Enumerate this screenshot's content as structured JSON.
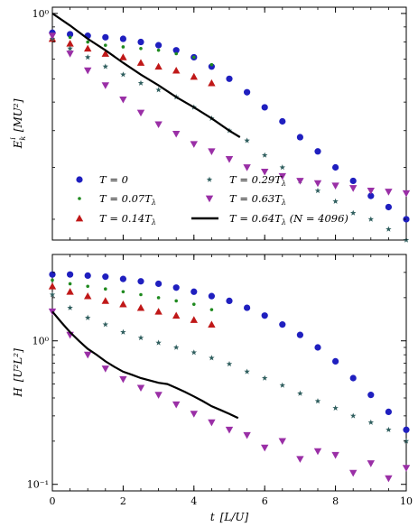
{
  "chart_data": [
    {
      "type": "scatter",
      "panel": "top",
      "ylabel": "$E_k^i$  $[MU^2]$",
      "ylabel_main": "E",
      "ylabel_sub": "k",
      "ylabel_sup": "i",
      "ylabel_unit": "[MU²]",
      "xlim": [
        0,
        10
      ],
      "ylog": true,
      "ylim": [
        0.17,
        1.05
      ],
      "yticks": [
        {
          "value": 1,
          "label": "10⁰"
        }
      ],
      "legend": "lower-left (inside, two columns)",
      "series": [
        {
          "name": "T = 0",
          "marker": "circle",
          "color": "#1f1fbf",
          "x": [
            0,
            0.5,
            1,
            1.5,
            2,
            2.5,
            3,
            3.5,
            4,
            4.5,
            5,
            5.5,
            6,
            6.5,
            7,
            7.5,
            8,
            8.5,
            9,
            9.5,
            10
          ],
          "y": [
            0.86,
            0.85,
            0.84,
            0.83,
            0.82,
            0.8,
            0.78,
            0.75,
            0.71,
            0.66,
            0.6,
            0.54,
            0.48,
            0.43,
            0.38,
            0.34,
            0.3,
            0.27,
            0.24,
            0.22,
            0.2
          ]
        },
        {
          "name": "T = 0.07T_λ",
          "marker": "dot",
          "color": "#1f8a1f",
          "x": [
            0,
            0.5,
            1,
            1.5,
            2,
            2.5,
            3,
            3.5,
            4,
            4.5
          ],
          "y": [
            0.85,
            0.83,
            0.8,
            0.78,
            0.77,
            0.76,
            0.75,
            0.73,
            0.71,
            0.67
          ]
        },
        {
          "name": "T = 0.14T_λ",
          "marker": "triangle-up",
          "color": "#c01818",
          "x": [
            0,
            0.5,
            1,
            1.5,
            2,
            2.5,
            3,
            3.5,
            4,
            4.5
          ],
          "y": [
            0.82,
            0.79,
            0.76,
            0.73,
            0.71,
            0.68,
            0.66,
            0.64,
            0.61,
            0.58
          ]
        },
        {
          "name": "T = 0.29T_λ",
          "marker": "star",
          "color": "#2f5e5e",
          "x": [
            0,
            0.5,
            1,
            1.5,
            2,
            2.5,
            3,
            3.5,
            4,
            4.5,
            5,
            5.5,
            6,
            6.5,
            7,
            7.5,
            8,
            8.5,
            9,
            9.5,
            10
          ],
          "y": [
            0.82,
            0.76,
            0.71,
            0.66,
            0.62,
            0.58,
            0.55,
            0.52,
            0.48,
            0.44,
            0.4,
            0.37,
            0.33,
            0.3,
            0.27,
            0.25,
            0.23,
            0.21,
            0.2,
            0.185,
            0.17
          ]
        },
        {
          "name": "T = 0.63T_λ",
          "marker": "triangle-down",
          "color": "#9a2fa6",
          "x": [
            0,
            0.5,
            1,
            1.5,
            2,
            2.5,
            3,
            3.5,
            4,
            4.5,
            5,
            5.5,
            6,
            6.5,
            7,
            7.5,
            8,
            8.5,
            9,
            9.5,
            10
          ],
          "y": [
            0.84,
            0.73,
            0.64,
            0.57,
            0.51,
            0.46,
            0.42,
            0.39,
            0.36,
            0.34,
            0.32,
            0.3,
            0.29,
            0.28,
            0.27,
            0.265,
            0.26,
            0.255,
            0.25,
            0.248,
            0.245
          ]
        },
        {
          "name": "T = 0.64T_λ (N = 4096)",
          "marker": "line",
          "color": "#000000",
          "x": [
            0,
            0.5,
            1,
            1.5,
            2,
            2.5,
            3,
            3.5,
            4,
            4.5,
            5,
            5.3
          ],
          "y": [
            1.0,
            0.91,
            0.82,
            0.75,
            0.68,
            0.62,
            0.57,
            0.52,
            0.48,
            0.44,
            0.4,
            0.38
          ]
        }
      ],
      "legend_entries": [
        {
          "text": "T = 0",
          "marker": "circle",
          "color": "#1f1fbf"
        },
        {
          "text": "T = 0.07T",
          "sub": "λ",
          "marker": "dot",
          "color": "#1f8a1f"
        },
        {
          "text": "T = 0.14T",
          "sub": "λ",
          "marker": "triangle-up",
          "color": "#c01818"
        },
        {
          "text": "T = 0.29T",
          "sub": "λ",
          "marker": "star",
          "color": "#2f5e5e"
        },
        {
          "text": "T = 0.63T",
          "sub": "λ",
          "marker": "triangle-down",
          "color": "#9a2fa6"
        },
        {
          "text": "T = 0.64T",
          "sub": "λ",
          "tail": " (N = 4096)",
          "marker": "line",
          "color": "#000000"
        }
      ]
    },
    {
      "type": "scatter",
      "panel": "bottom",
      "xlabel": "t  [L/U]",
      "xlabel_main": "t",
      "xlabel_unit": "[L/U]",
      "ylabel": "H  [U²L²]",
      "ylabel_main": "H",
      "ylabel_unit": "[U²L²]",
      "xlim": [
        0,
        10
      ],
      "xticks": [
        {
          "value": 0,
          "label": "0"
        },
        {
          "value": 2,
          "label": "2"
        },
        {
          "value": 4,
          "label": "4"
        },
        {
          "value": 6,
          "label": "6"
        },
        {
          "value": 8,
          "label": "8"
        },
        {
          "value": 10,
          "label": "10"
        }
      ],
      "ylog": true,
      "ylim": [
        0.09,
        4
      ],
      "yticks": [
        {
          "value": 1,
          "label": "10⁰"
        },
        {
          "value": 0.1,
          "label": "10⁻¹"
        }
      ],
      "series": [
        {
          "name": "T = 0",
          "marker": "circle",
          "color": "#1f1fbf",
          "x": [
            0,
            0.5,
            1,
            1.5,
            2,
            2.5,
            3,
            3.5,
            4,
            4.5,
            5,
            5.5,
            6,
            6.5,
            7,
            7.5,
            8,
            8.5,
            9,
            9.5,
            10
          ],
          "y": [
            2.9,
            2.9,
            2.85,
            2.8,
            2.7,
            2.6,
            2.5,
            2.35,
            2.2,
            2.05,
            1.9,
            1.7,
            1.5,
            1.3,
            1.1,
            0.9,
            0.72,
            0.55,
            0.42,
            0.32,
            0.24
          ]
        },
        {
          "name": "T = 0.07T_λ",
          "marker": "dot",
          "color": "#1f8a1f",
          "x": [
            0,
            0.5,
            1,
            1.5,
            2,
            2.5,
            3,
            3.5,
            4,
            4.5
          ],
          "y": [
            2.65,
            2.5,
            2.4,
            2.3,
            2.2,
            2.1,
            2.0,
            1.9,
            1.8,
            1.65
          ]
        },
        {
          "name": "T = 0.14T_λ",
          "marker": "triangle-up",
          "color": "#c01818",
          "x": [
            0,
            0.5,
            1,
            1.5,
            2,
            2.5,
            3,
            3.5,
            4,
            4.5
          ],
          "y": [
            2.4,
            2.2,
            2.05,
            1.9,
            1.8,
            1.7,
            1.6,
            1.5,
            1.4,
            1.3
          ]
        },
        {
          "name": "T = 0.29T_λ",
          "marker": "star",
          "color": "#2f5e5e",
          "x": [
            0,
            0.5,
            1,
            1.5,
            2,
            2.5,
            3,
            3.5,
            4,
            4.5,
            5,
            5.5,
            6,
            6.5,
            7,
            7.5,
            8,
            8.5,
            9,
            9.5,
            10
          ],
          "y": [
            2.1,
            1.7,
            1.45,
            1.3,
            1.15,
            1.05,
            0.97,
            0.9,
            0.83,
            0.76,
            0.69,
            0.61,
            0.55,
            0.49,
            0.43,
            0.38,
            0.34,
            0.3,
            0.27,
            0.24,
            0.2
          ]
        },
        {
          "name": "T = 0.63T_λ",
          "marker": "triangle-down",
          "color": "#9a2fa6",
          "x": [
            0,
            0.5,
            1,
            1.5,
            2,
            2.5,
            3,
            3.5,
            4,
            4.5,
            5,
            5.5,
            6,
            6.5,
            7,
            7.5,
            8,
            8.5,
            9,
            9.5,
            10
          ],
          "y": [
            1.6,
            1.1,
            0.8,
            0.64,
            0.54,
            0.47,
            0.42,
            0.36,
            0.31,
            0.27,
            0.24,
            0.22,
            0.18,
            0.2,
            0.15,
            0.17,
            0.16,
            0.12,
            0.14,
            0.11,
            0.13
          ]
        },
        {
          "name": "T = 0.64T_λ (N = 4096)",
          "marker": "line",
          "color": "#000000",
          "x": [
            0,
            0.25,
            0.5,
            0.75,
            1,
            1.25,
            1.5,
            1.75,
            2,
            2.25,
            2.5,
            2.75,
            3,
            3.25,
            3.5,
            3.75,
            4,
            4.25,
            4.5,
            4.75,
            5,
            5.25
          ],
          "y": [
            1.6,
            1.35,
            1.15,
            1.0,
            0.88,
            0.8,
            0.72,
            0.66,
            0.61,
            0.58,
            0.55,
            0.53,
            0.51,
            0.5,
            0.47,
            0.44,
            0.41,
            0.38,
            0.35,
            0.33,
            0.31,
            0.29
          ]
        }
      ]
    }
  ]
}
